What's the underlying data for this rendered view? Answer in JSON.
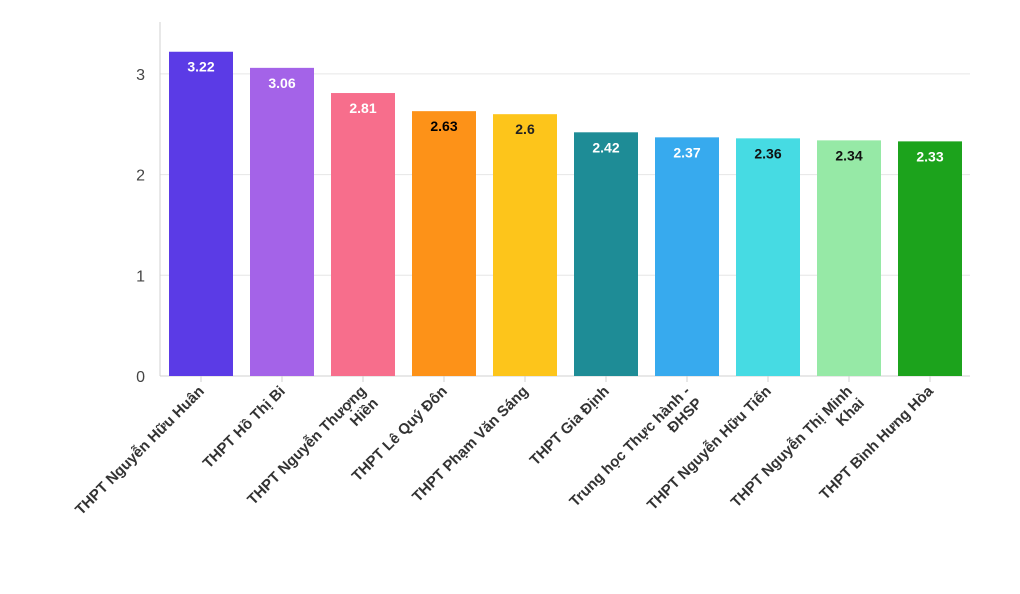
{
  "chart_data": {
    "type": "bar",
    "title": "",
    "xlabel": "",
    "ylabel": "",
    "ylim": [
      0,
      3.5
    ],
    "yticks": [
      0,
      1,
      2,
      3
    ],
    "grid": true,
    "legend": "none",
    "categories": [
      [
        "THPT Nguyễn Hữu Huân"
      ],
      [
        "THPT Hồ Thị Bi"
      ],
      [
        "THPT Nguyễn Thượng",
        "Hiền"
      ],
      [
        "THPT Lê Quý Đôn"
      ],
      [
        "THPT Phạm Văn Sáng"
      ],
      [
        "THPT Gia Định"
      ],
      [
        "Trung học Thực hành -",
        "ĐHSP"
      ],
      [
        "THPT Nguyễn Hữu Tiến"
      ],
      [
        "THPT Nguyễn Thị Minh",
        "Khai"
      ],
      [
        "THPT Bình Hưng Hòa"
      ]
    ],
    "values": [
      3.22,
      3.06,
      2.81,
      2.63,
      2.6,
      2.42,
      2.37,
      2.36,
      2.34,
      2.33
    ],
    "value_labels": [
      "3.22",
      "3.06",
      "2.81",
      "2.63",
      "2.6",
      "2.42",
      "2.37",
      "2.36",
      "2.34",
      "2.33"
    ],
    "colors": [
      "#5b3be6",
      "#a463e8",
      "#f76e8c",
      "#fd9218",
      "#fdc51b",
      "#1e8c96",
      "#37aaee",
      "#46dbe3",
      "#96e9a6",
      "#1ca31c"
    ],
    "label_colors": [
      "#ffffff",
      "#ffffff",
      "#ffffff",
      "#000000",
      "#222222",
      "#ffffff",
      "#ffffff",
      "#111111",
      "#111111",
      "#ffffff"
    ]
  }
}
